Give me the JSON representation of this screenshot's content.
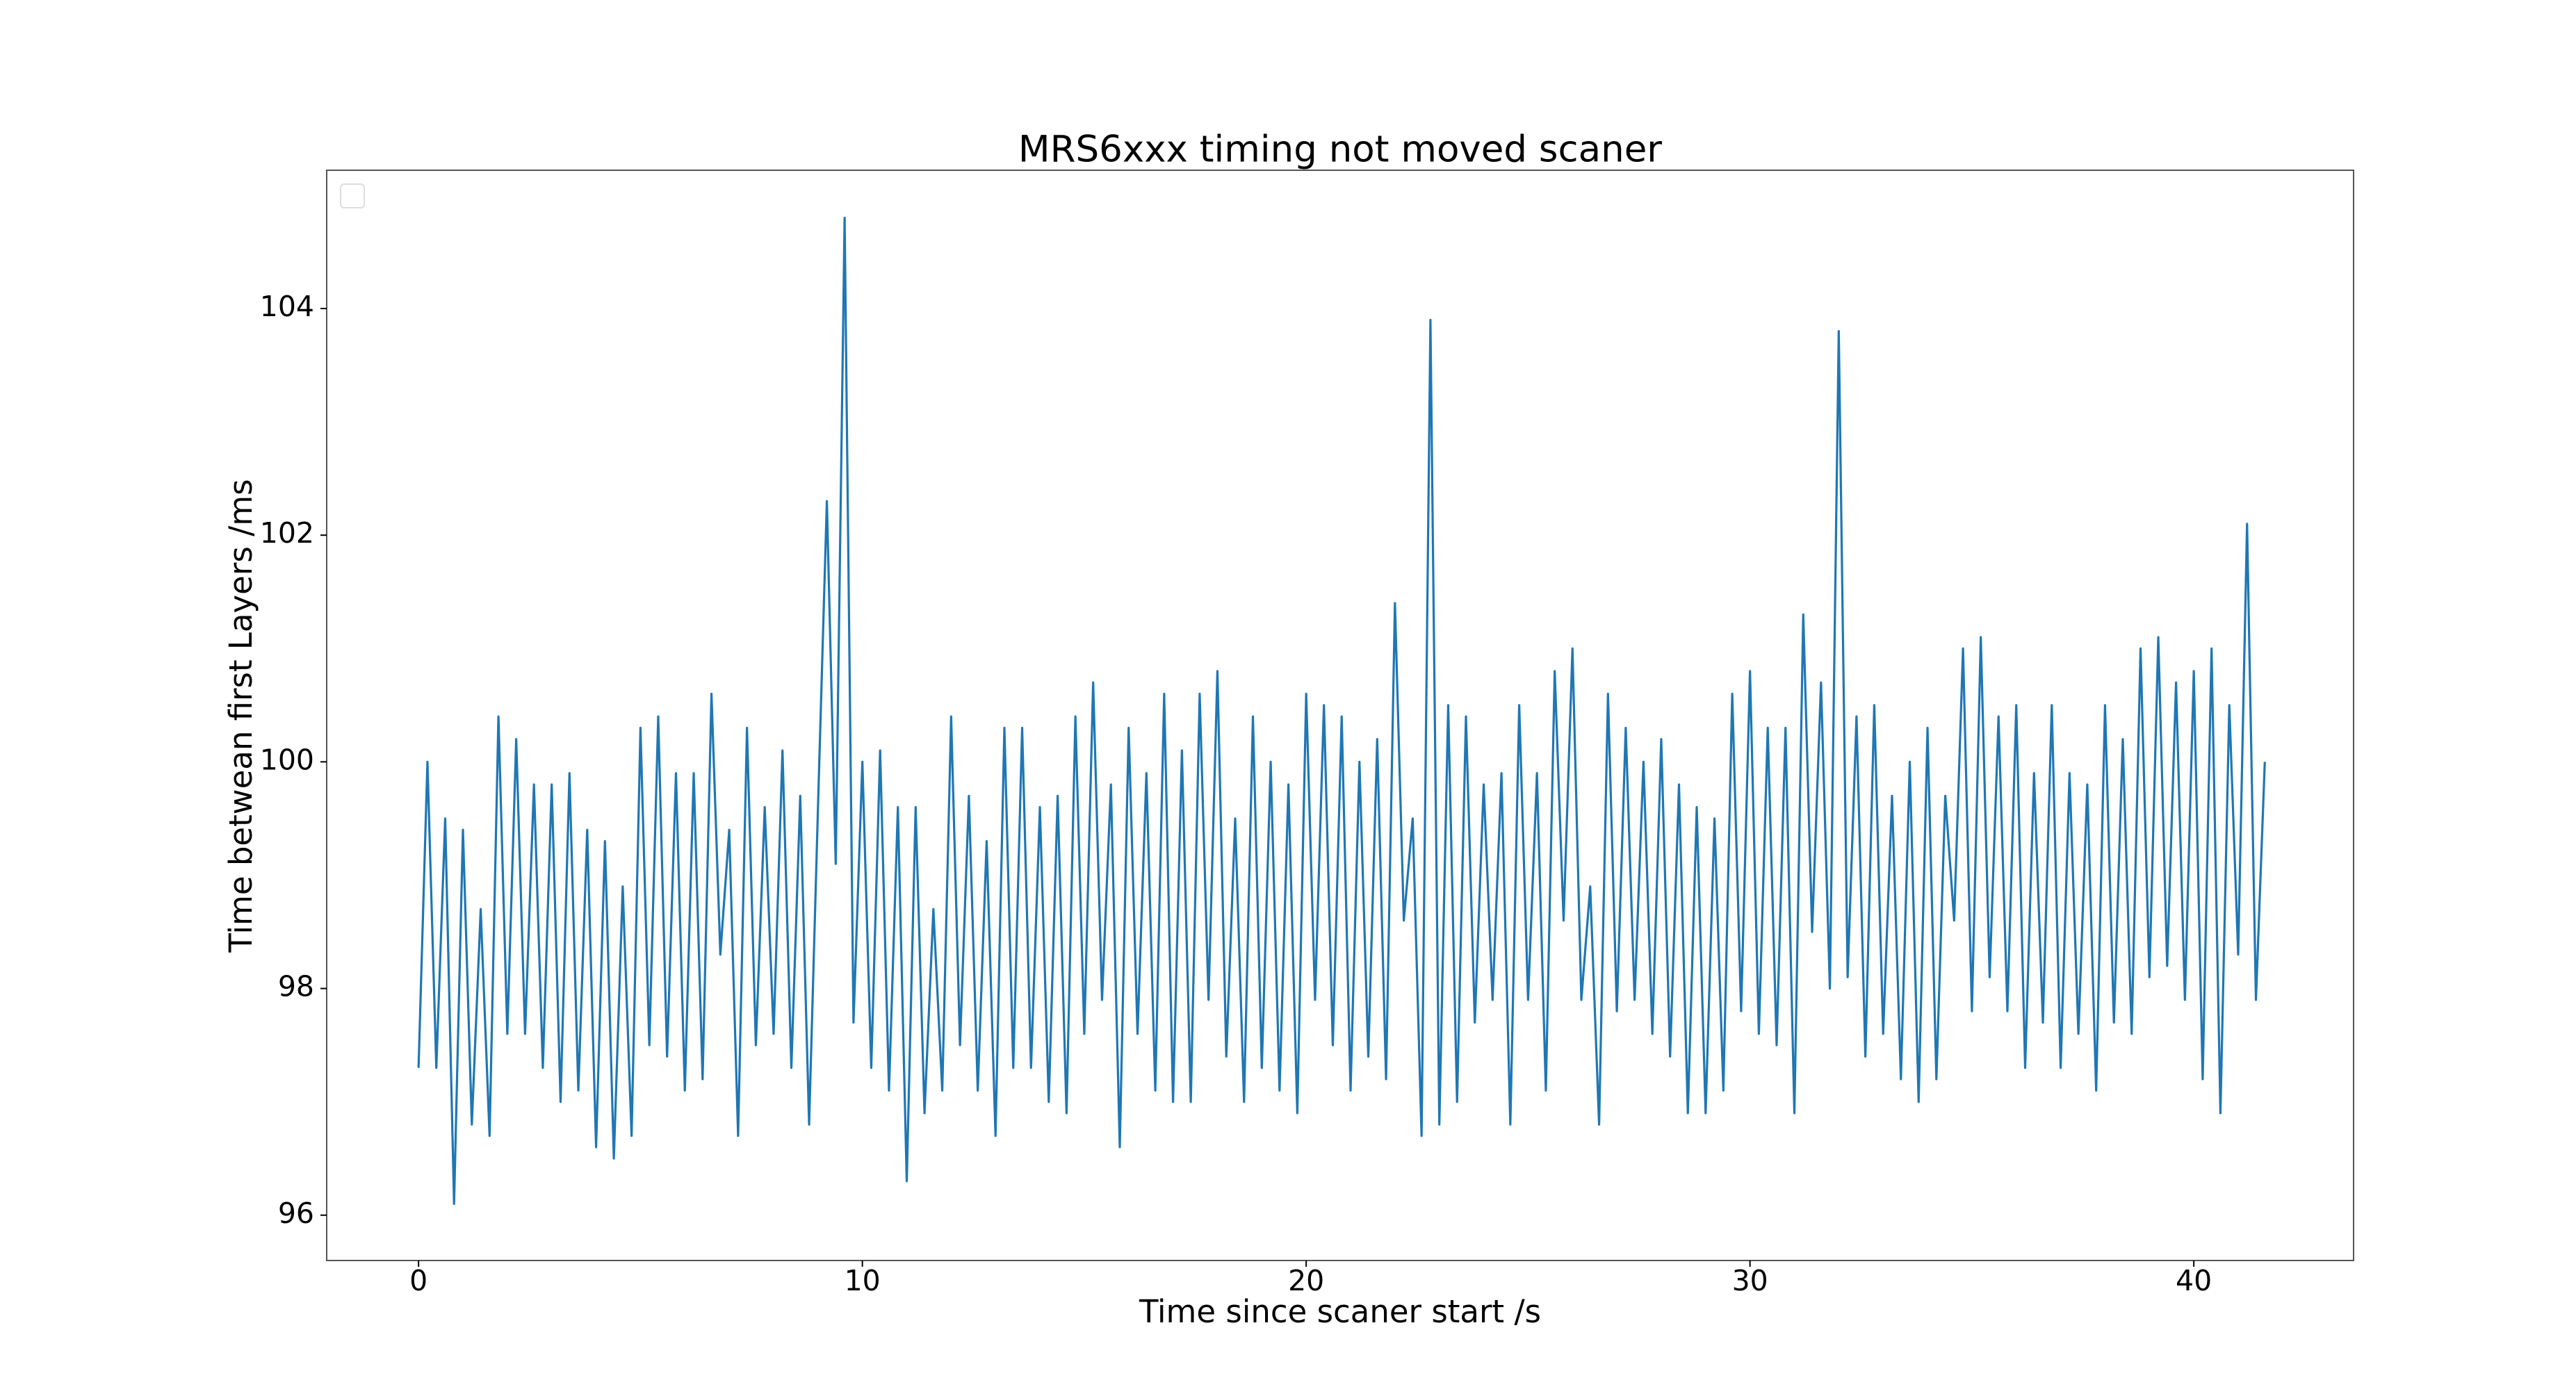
{
  "chart_data": {
    "type": "line",
    "title": "MRS6xxx timing not moved scaner",
    "x_label": "Time since scaner start /s",
    "y_label": "Time betwean first Layers /ms",
    "xlim": [
      -2.07,
      43.6
    ],
    "ylim": [
      95.6,
      105.22
    ],
    "xticks": [
      0,
      10,
      20,
      30,
      40
    ],
    "yticks": [
      96,
      98,
      100,
      102,
      104
    ],
    "grid": false,
    "legend": "upper left",
    "x": [
      0,
      0.2,
      0.4,
      0.6,
      0.8,
      1,
      1.2,
      1.4,
      1.6,
      1.8,
      2,
      2.2,
      2.4,
      2.6,
      2.8,
      3,
      3.2,
      3.4,
      3.6,
      3.8,
      4,
      4.2,
      4.4,
      4.6,
      4.8,
      5,
      5.2,
      5.4,
      5.6,
      5.8,
      6,
      6.2,
      6.4,
      6.6,
      6.8,
      7,
      7.2,
      7.4,
      7.6,
      7.8,
      8,
      8.2,
      8.4,
      8.6,
      8.8,
      9,
      9.2,
      9.4,
      9.6,
      9.8,
      10,
      10.2,
      10.4,
      10.6,
      10.8,
      11,
      11.2,
      11.4,
      11.6,
      11.8,
      12,
      12.2,
      12.4,
      12.6,
      12.8,
      13,
      13.2,
      13.4,
      13.6,
      13.8,
      14,
      14.2,
      14.4,
      14.6,
      14.8,
      15,
      15.2,
      15.4,
      15.6,
      15.8,
      16,
      16.2,
      16.4,
      16.6,
      16.8,
      17,
      17.2,
      17.4,
      17.6,
      17.8,
      18,
      18.2,
      18.4,
      18.6,
      18.8,
      19,
      19.2,
      19.4,
      19.6,
      19.8,
      20,
      20.2,
      20.4,
      20.6,
      20.8,
      21,
      21.2,
      21.4,
      21.6,
      21.8,
      22,
      22.2,
      22.4,
      22.6,
      22.8,
      23,
      23.2,
      23.4,
      23.6,
      23.8,
      24,
      24.2,
      24.4,
      24.6,
      24.8,
      25,
      25.2,
      25.4,
      25.6,
      25.8,
      26,
      26.2,
      26.4,
      26.6,
      26.8,
      27,
      27.2,
      27.4,
      27.6,
      27.8,
      28,
      28.2,
      28.4,
      28.6,
      28.8,
      29,
      29.2,
      29.4,
      29.6,
      29.8,
      30,
      30.2,
      30.4,
      30.6,
      30.8,
      31,
      31.2,
      31.4,
      31.6,
      31.8,
      32,
      32.2,
      32.4,
      32.6,
      32.8,
      33,
      33.2,
      33.4,
      33.6,
      33.8,
      34,
      34.2,
      34.4,
      34.6,
      34.8,
      35,
      35.2,
      35.4,
      35.6,
      35.8,
      36,
      36.2,
      36.4,
      36.6,
      36.8,
      37,
      37.2,
      37.4,
      37.6,
      37.8,
      38,
      38.2,
      38.4,
      38.6,
      38.8,
      39,
      39.2,
      39.4,
      39.6,
      39.8,
      40,
      40.2,
      40.4,
      40.6,
      40.8,
      41,
      41.2,
      41.4,
      41.6
    ],
    "series": [
      {
        "color": "#1f77b4",
        "values": [
          97.3,
          100.0,
          97.3,
          99.5,
          96.1,
          99.4,
          96.8,
          98.7,
          96.7,
          100.4,
          97.6,
          100.2,
          97.6,
          99.8,
          97.3,
          99.8,
          97.0,
          99.9,
          97.1,
          99.4,
          96.6,
          99.3,
          96.5,
          98.9,
          96.7,
          100.3,
          97.5,
          100.4,
          97.4,
          99.9,
          97.1,
          99.9,
          97.2,
          100.6,
          98.3,
          99.4,
          96.7,
          100.3,
          97.5,
          99.6,
          97.6,
          100.1,
          97.3,
          99.7,
          96.8,
          99.6,
          102.3,
          99.1,
          104.8,
          97.7,
          100.0,
          97.3,
          100.1,
          97.1,
          99.6,
          96.3,
          99.6,
          96.9,
          98.7,
          97.1,
          100.4,
          97.5,
          99.7,
          97.1,
          99.3,
          96.7,
          100.3,
          97.3,
          100.3,
          97.3,
          99.6,
          97.0,
          99.7,
          96.9,
          100.4,
          97.6,
          100.7,
          97.9,
          99.8,
          96.6,
          100.3,
          97.6,
          99.9,
          97.1,
          100.6,
          97.0,
          100.1,
          97.0,
          100.6,
          97.9,
          100.8,
          97.4,
          99.5,
          97.0,
          100.4,
          97.3,
          100.0,
          97.1,
          99.8,
          96.9,
          100.6,
          97.9,
          100.5,
          97.5,
          100.4,
          97.1,
          100.0,
          97.4,
          100.2,
          97.2,
          101.4,
          98.6,
          99.5,
          96.7,
          103.9,
          96.8,
          100.5,
          97.0,
          100.4,
          97.7,
          99.8,
          97.9,
          99.9,
          96.8,
          100.5,
          97.9,
          99.9,
          97.1,
          100.8,
          98.6,
          101.0,
          97.9,
          98.9,
          96.8,
          100.6,
          97.8,
          100.3,
          97.9,
          100.0,
          97.6,
          100.2,
          97.4,
          99.8,
          96.9,
          99.6,
          96.9,
          99.5,
          97.1,
          100.6,
          97.8,
          100.8,
          97.6,
          100.3,
          97.5,
          100.3,
          96.9,
          101.3,
          98.5,
          100.7,
          98.0,
          103.8,
          98.1,
          100.4,
          97.4,
          100.5,
          97.6,
          99.7,
          97.2,
          100.0,
          97.0,
          100.3,
          97.2,
          99.7,
          98.6,
          101.0,
          97.8,
          101.1,
          98.1,
          100.4,
          97.8,
          100.5,
          97.3,
          99.9,
          97.7,
          100.5,
          97.3,
          99.9,
          97.6,
          99.8,
          97.1,
          100.5,
          97.7,
          100.2,
          97.6,
          101.0,
          98.1,
          101.1,
          98.2,
          100.7,
          97.9,
          100.8,
          97.2,
          101.0,
          96.9,
          100.5,
          98.3,
          102.1,
          97.9,
          100.0
        ]
      }
    ]
  }
}
